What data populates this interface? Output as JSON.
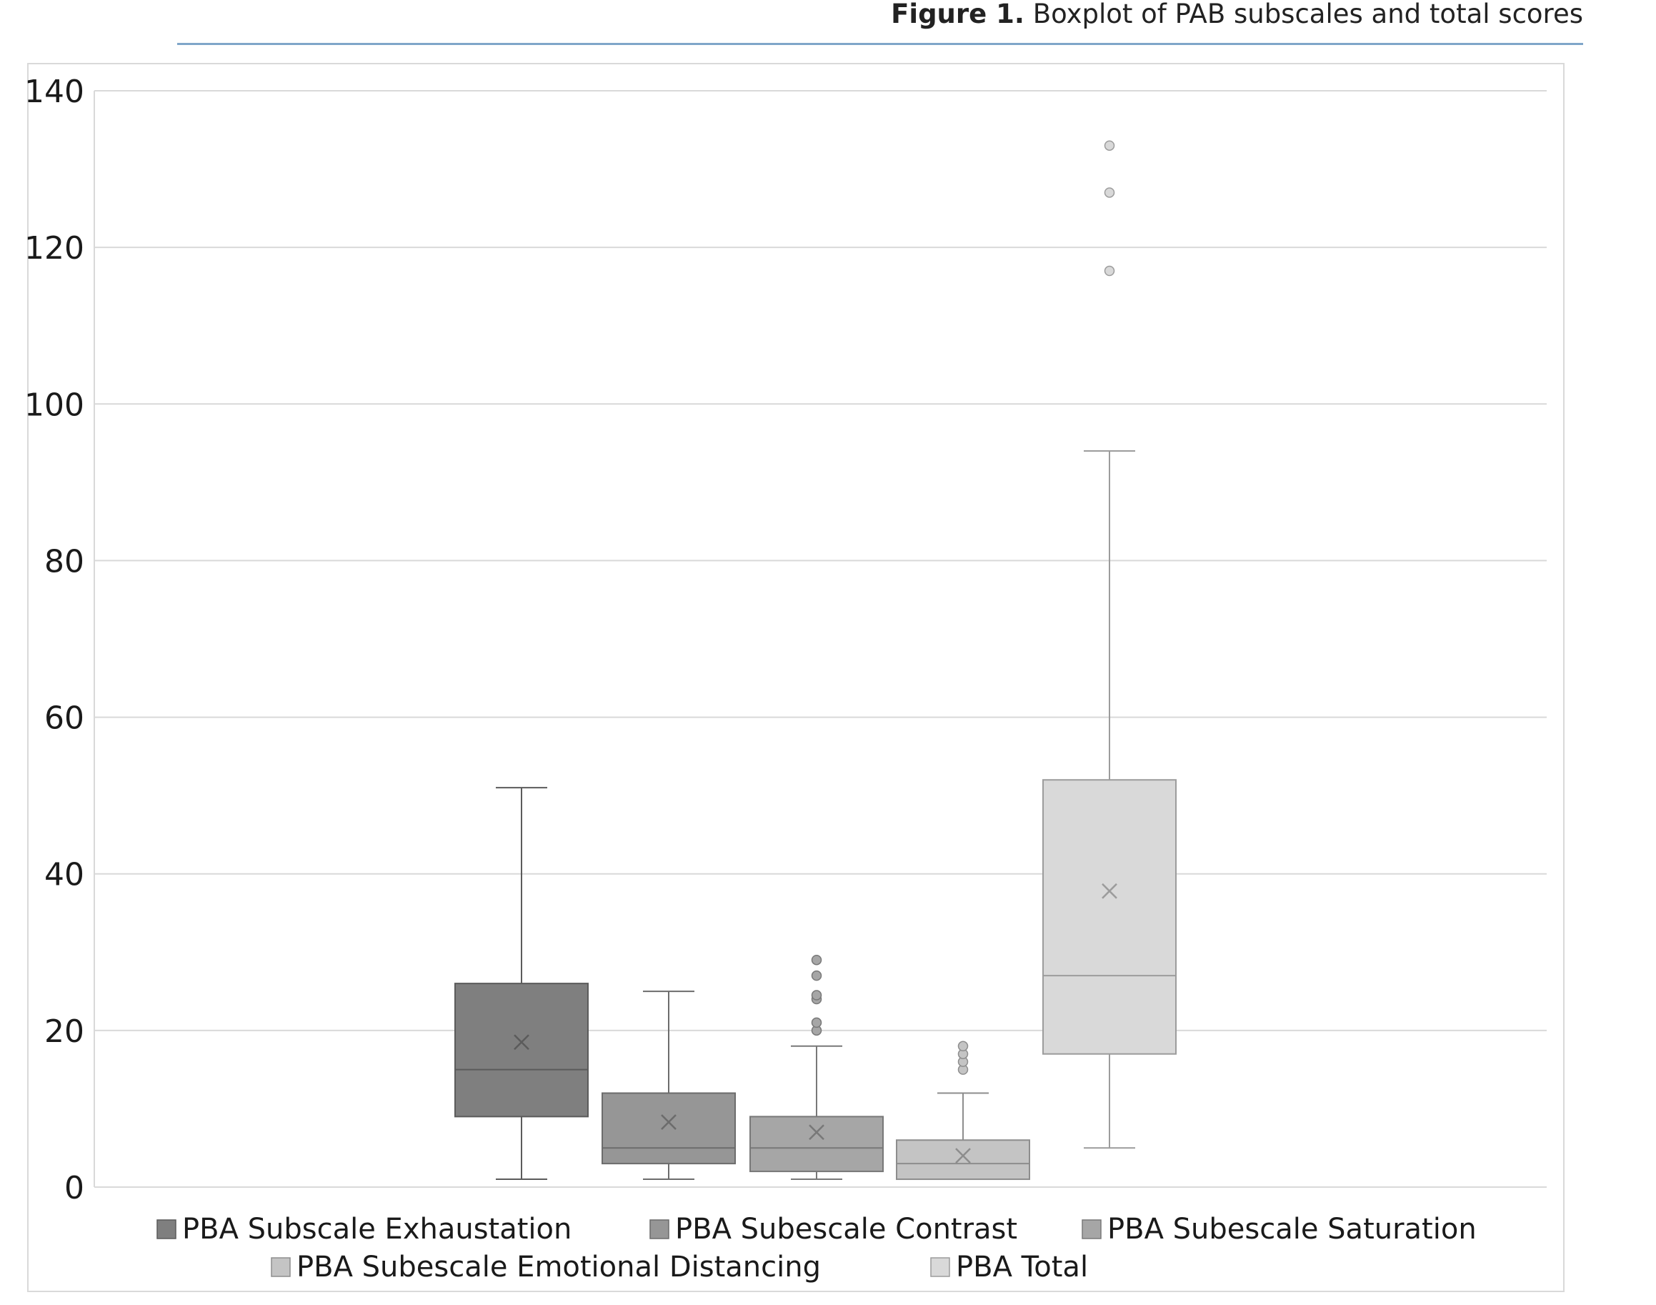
{
  "caption": {
    "label": "Figure 1.",
    "text": "Boxplot of PAB subscales and total scores"
  },
  "chart_data": {
    "type": "boxplot",
    "title": "",
    "xlabel": "",
    "ylabel": "",
    "ylim": [
      0,
      140
    ],
    "yticks": [
      0,
      20,
      40,
      60,
      80,
      100,
      120,
      140
    ],
    "grid": true,
    "legend_position": "bottom",
    "series": [
      {
        "name": "PBA Subscale Exhaustation",
        "color": "#7f7f7f",
        "min": 1,
        "q1": 9,
        "median": 15,
        "q3": 26,
        "max": 51,
        "mean": 18.5,
        "outliers": []
      },
      {
        "name": "PBA Subescale Contrast",
        "color": "#969696",
        "min": 1,
        "q1": 3,
        "median": 5,
        "q3": 12,
        "max": 25,
        "mean": 8.3,
        "outliers": []
      },
      {
        "name": "PBA Subescale Saturation",
        "color": "#a6a6a6",
        "min": 1,
        "q1": 2,
        "median": 5,
        "q3": 9,
        "max": 18,
        "mean": 7,
        "outliers": [
          20,
          21,
          24,
          24.5,
          27,
          29
        ]
      },
      {
        "name": "PBA Subescale Emotional Distancing",
        "color": "#c4c4c4",
        "min": 1,
        "q1": 1,
        "median": 3,
        "q3": 6,
        "max": 12,
        "mean": 4,
        "outliers": [
          15,
          16,
          17,
          18
        ]
      },
      {
        "name": "PBA Total",
        "color": "#d9d9d9",
        "min": 5,
        "q1": 17,
        "median": 27,
        "q3": 52,
        "max": 94,
        "mean": 37.8,
        "outliers": [
          117,
          127,
          133
        ]
      }
    ]
  }
}
